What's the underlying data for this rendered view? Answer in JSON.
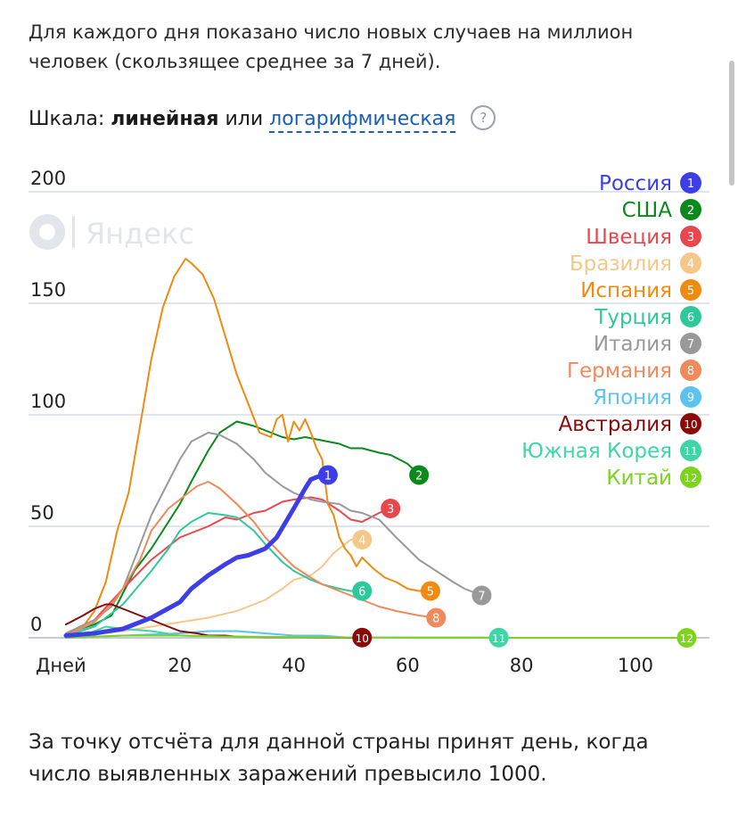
{
  "intro_text": "Для каждого дня показано число новых случаев на миллион человек (скользящее среднее за 7 дней).",
  "scale": {
    "prefix": "Шкала:",
    "linear": "линейная",
    "or": "или",
    "log": "логарифмическая",
    "help": "?"
  },
  "watermark": "Яндекс",
  "outro_text": "За точку отсчёта для данной страны принят день, когда число выявленных заражений превысило 1000.",
  "chart_data": {
    "type": "line",
    "title": "",
    "xlabel": "Дней",
    "ylabel": "",
    "xlim": [
      0,
      113
    ],
    "ylim": [
      0,
      200
    ],
    "x_ticks": [
      20,
      40,
      60,
      80,
      100
    ],
    "x_tick_labels": [
      "20",
      "40",
      "60",
      "80",
      "100"
    ],
    "y_ticks": [
      0,
      50,
      100,
      150,
      200
    ],
    "y_tick_labels": [
      "0",
      "50",
      "100",
      "150",
      "200"
    ],
    "grid": true,
    "legend_position": "top-right",
    "series": [
      {
        "name": "Россия",
        "num": "1",
        "color": "#3d3ee8",
        "x": [
          0,
          5,
          10,
          15,
          20,
          22,
          25,
          28,
          30,
          32,
          35,
          37,
          40,
          42,
          43,
          45,
          46
        ],
        "y": [
          1,
          2,
          4,
          9,
          16,
          22,
          28,
          33,
          36,
          37,
          40,
          45,
          58,
          67,
          71,
          73,
          73
        ]
      },
      {
        "name": "США",
        "num": "2",
        "color": "#0a8a1a",
        "x": [
          0,
          5,
          8,
          10,
          12,
          15,
          17,
          20,
          22,
          25,
          27,
          30,
          33,
          35,
          38,
          40,
          42,
          44,
          46,
          48,
          50,
          52,
          55,
          57,
          60,
          62
        ],
        "y": [
          2,
          6,
          10,
          20,
          30,
          40,
          48,
          60,
          70,
          84,
          92,
          97,
          95,
          93,
          90,
          89,
          90,
          89,
          88,
          87,
          85,
          85,
          83,
          82,
          78,
          73
        ]
      },
      {
        "name": "Швеция",
        "num": "3",
        "color": "#e8484d",
        "x": [
          0,
          5,
          10,
          15,
          20,
          25,
          28,
          30,
          33,
          35,
          38,
          40,
          43,
          45,
          48,
          50,
          52,
          55,
          57
        ],
        "y": [
          2,
          8,
          22,
          35,
          45,
          50,
          54,
          53,
          56,
          57,
          61,
          62,
          63,
          62,
          57,
          53,
          52,
          56,
          58
        ]
      },
      {
        "name": "Бразилия",
        "num": "4",
        "color": "#f5c88a",
        "x": [
          0,
          5,
          10,
          15,
          20,
          25,
          30,
          35,
          38,
          40,
          43,
          45,
          47,
          50,
          52
        ],
        "y": [
          1,
          2,
          3,
          5,
          7,
          9,
          12,
          17,
          22,
          26,
          28,
          32,
          38,
          44,
          44
        ]
      },
      {
        "name": "Испания",
        "num": "5",
        "color": "#f08a10",
        "x": [
          0,
          3,
          5,
          7,
          9,
          11,
          13,
          15,
          17,
          19,
          21,
          22,
          24,
          26,
          28,
          30,
          32,
          34,
          36,
          37,
          38,
          39,
          40,
          41,
          42,
          43,
          44,
          45,
          46,
          47,
          48,
          49,
          50,
          51,
          52,
          54,
          56,
          58,
          60,
          62,
          64
        ],
        "y": [
          2,
          5,
          12,
          25,
          48,
          65,
          95,
          125,
          148,
          162,
          170,
          168,
          163,
          152,
          135,
          118,
          105,
          92,
          90,
          98,
          100,
          88,
          97,
          93,
          98,
          92,
          85,
          80,
          60,
          55,
          45,
          40,
          37,
          32,
          36,
          31,
          27,
          25,
          22,
          21,
          21
        ]
      },
      {
        "name": "Турция",
        "num": "6",
        "color": "#2ec99a",
        "x": [
          0,
          5,
          10,
          15,
          18,
          20,
          22,
          25,
          28,
          30,
          33,
          35,
          38,
          40,
          43,
          45,
          48,
          50,
          52
        ],
        "y": [
          1,
          5,
          15,
          30,
          40,
          48,
          52,
          56,
          55,
          54,
          48,
          42,
          34,
          30,
          26,
          24,
          22,
          21,
          21
        ]
      },
      {
        "name": "Италия",
        "num": "7",
        "color": "#999999",
        "x": [
          0,
          5,
          8,
          10,
          12,
          15,
          18,
          20,
          22,
          25,
          27,
          30,
          33,
          35,
          38,
          40,
          43,
          45,
          48,
          50,
          52,
          55,
          58,
          60,
          62,
          65,
          68,
          70,
          73
        ],
        "y": [
          2,
          8,
          14,
          22,
          35,
          55,
          70,
          80,
          88,
          92,
          91,
          87,
          80,
          74,
          68,
          65,
          62,
          61,
          60,
          57,
          56,
          53,
          45,
          40,
          35,
          30,
          25,
          22,
          19
        ]
      },
      {
        "name": "Германия",
        "num": "8",
        "color": "#f08a5d",
        "x": [
          0,
          5,
          8,
          10,
          13,
          15,
          18,
          20,
          23,
          25,
          27,
          30,
          33,
          35,
          38,
          40,
          43,
          45,
          48,
          50,
          53,
          55,
          58,
          60,
          62,
          65
        ],
        "y": [
          1,
          7,
          15,
          22,
          35,
          48,
          58,
          62,
          68,
          70,
          67,
          60,
          52,
          45,
          37,
          32,
          27,
          24,
          21,
          19,
          16,
          14,
          12,
          11,
          10,
          9
        ]
      },
      {
        "name": "Япония",
        "num": "9",
        "color": "#5ac3f0",
        "x": [
          0,
          10,
          20,
          25,
          30,
          35,
          40,
          45,
          50
        ],
        "y": [
          0,
          1,
          2,
          3,
          3,
          2,
          1,
          1,
          0
        ]
      },
      {
        "name": "Австралия",
        "num": "10",
        "color": "#8a0a0a",
        "x": [
          0,
          3,
          5,
          7,
          8,
          10,
          12,
          15,
          18,
          20,
          23,
          25,
          28,
          30,
          35,
          40,
          45,
          50,
          52
        ],
        "y": [
          6,
          10,
          13,
          15,
          15,
          13,
          11,
          8,
          5,
          3,
          2,
          1,
          1,
          0.5,
          0.3,
          0.2,
          0.1,
          0.1,
          0.1
        ]
      },
      {
        "name": "Южная Корея",
        "num": "11",
        "color": "#3ed6a6",
        "x": [
          0,
          3,
          5,
          7,
          10,
          15,
          20,
          30,
          40,
          50,
          60,
          70,
          76
        ],
        "y": [
          0,
          1,
          3,
          5,
          4,
          3,
          1,
          0.5,
          0.3,
          0.2,
          0.1,
          0.1,
          0.1
        ]
      },
      {
        "name": "Китай",
        "num": "12",
        "color": "#7ed321",
        "x": [
          0,
          5,
          10,
          15,
          20,
          30,
          40,
          50,
          60,
          70,
          80,
          90,
          100,
          109
        ],
        "y": [
          0,
          0.5,
          1,
          1,
          1,
          0.5,
          0.3,
          0.2,
          0.1,
          0.1,
          0,
          0,
          0,
          0
        ]
      }
    ]
  }
}
